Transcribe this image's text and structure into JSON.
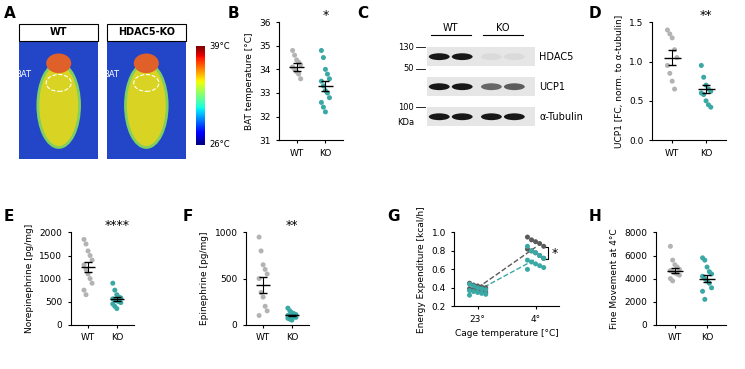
{
  "thermal_images": {
    "panel_label": "A",
    "images": [
      "WT",
      "HDAC5-KO"
    ],
    "region_label": "BAT",
    "scale": {
      "max_label": "39°C",
      "min_label": "26°C"
    }
  },
  "blot": {
    "panel_label": "C",
    "groups": [
      "WT",
      "KO"
    ],
    "proteins": [
      "HDAC5",
      "UCP1",
      "α-Tubulin"
    ],
    "size_markers": [
      130,
      50,
      100
    ],
    "size_unit": "KDa"
  },
  "chart_data": [
    {
      "panel_label": "B",
      "type": "dot",
      "ylabel": "BAT temperature [°C]",
      "categories": [
        "WT",
        "KO"
      ],
      "colors": [
        "#b3b3b3",
        "#3aa8a4"
      ],
      "values": [
        [
          34.8,
          34.6,
          34.4,
          34.3,
          34.2,
          34.1,
          34.0,
          33.9,
          33.8,
          33.6
        ],
        [
          34.8,
          34.5,
          34.0,
          33.8,
          33.6,
          33.5,
          33.3,
          33.1,
          33.0,
          32.8,
          32.6,
          32.4,
          32.2
        ]
      ],
      "means": [
        34.1,
        33.3
      ],
      "sem": [
        0.15,
        0.2
      ],
      "ylim": [
        31,
        36
      ],
      "yticks": [
        31,
        32,
        33,
        34,
        35,
        36
      ],
      "annotation": "*"
    },
    {
      "panel_label": "D",
      "type": "dot",
      "ylabel": "UCP1 [FC, norm. to α-tubulin]",
      "categories": [
        "WT",
        "KO"
      ],
      "colors": [
        "#b3b3b3",
        "#3aa8a4"
      ],
      "values": [
        [
          1.4,
          1.35,
          1.3,
          1.15,
          1.05,
          0.95,
          0.85,
          0.75,
          0.65
        ],
        [
          0.95,
          0.8,
          0.7,
          0.65,
          0.62,
          0.6,
          0.58,
          0.5,
          0.45,
          0.42
        ]
      ],
      "means": [
        1.05,
        0.65
      ],
      "sem": [
        0.09,
        0.05
      ],
      "ylim": [
        0,
        1.5
      ],
      "yticks": [
        {
          "value": 0,
          "label": "0.0"
        },
        {
          "value": 0.5,
          "label": "0.5"
        },
        {
          "value": 1,
          "label": "1.0"
        },
        {
          "value": 1.5,
          "label": "1.5"
        }
      ],
      "annotation": "**"
    },
    {
      "panel_label": "E",
      "type": "dot",
      "ylabel": "Norepinephrine [pg/mg]",
      "categories": [
        "WT",
        "KO"
      ],
      "colors": [
        "#b3b3b3",
        "#3aa8a4"
      ],
      "values": [
        [
          1850,
          1750,
          1600,
          1500,
          1400,
          1300,
          1200,
          1100,
          1000,
          900,
          750,
          650
        ],
        [
          900,
          750,
          650,
          600,
          580,
          560,
          540,
          520,
          500,
          480,
          450,
          400,
          350
        ]
      ],
      "means": [
        1250,
        560
      ],
      "sem": [
        100,
        40
      ],
      "ylim": [
        0,
        2000
      ],
      "yticks": [
        0,
        500,
        1000,
        1500,
        2000
      ],
      "annotation": "****"
    },
    {
      "panel_label": "F",
      "type": "dot",
      "ylabel": "Epinephrine [pg/mg]",
      "categories": [
        "WT",
        "KO"
      ],
      "colors": [
        "#b3b3b3",
        "#3aa8a4"
      ],
      "values": [
        [
          950,
          800,
          650,
          600,
          550,
          500,
          350,
          300,
          200,
          150,
          100
        ],
        [
          180,
          150,
          130,
          120,
          110,
          100,
          95,
          90,
          85,
          80,
          70,
          60,
          50
        ]
      ],
      "means": [
        430,
        100
      ],
      "sem": [
        90,
        10
      ],
      "ylim": [
        0,
        1000
      ],
      "yticks": [
        0,
        500,
        1000
      ],
      "annotation": "**"
    },
    {
      "panel_label": "G",
      "type": "line",
      "ylabel": "Energy Expenditure [kcal/h]",
      "xlabel": "Cage temperature [°C]",
      "categories": [
        "23°",
        "4°"
      ],
      "marker": "o",
      "line_style": "dashed",
      "series": [
        {
          "color": "#5a5a5a",
          "values": [
            [
              0.45,
              0.43,
              0.42,
              0.41,
              0.4,
              0.39,
              0.38,
              0.37,
              0.36,
              0.35
            ],
            [
              0.95,
              0.92,
              0.9,
              0.88,
              0.85,
              0.82,
              0.8,
              0.78,
              0.75,
              0.72
            ]
          ],
          "means": [
            0.4,
            0.84
          ]
        },
        {
          "color": "#3aa8a4",
          "values": [
            [
              0.44,
              0.42,
              0.4,
              0.39,
              0.38,
              0.37,
              0.36,
              0.35,
              0.34,
              0.33,
              0.32
            ],
            [
              0.85,
              0.8,
              0.78,
              0.75,
              0.72,
              0.7,
              0.68,
              0.66,
              0.64,
              0.62,
              0.6
            ]
          ],
          "means": [
            0.37,
            0.71
          ]
        }
      ],
      "ylim": [
        0.2,
        1.0
      ],
      "yticks": [
        {
          "value": 0.2,
          "label": "0.2"
        },
        {
          "value": 0.4,
          "label": "0.4"
        },
        {
          "value": 0.6,
          "label": "0.6"
        },
        {
          "value": 0.8,
          "label": "0.8"
        },
        {
          "value": 1.0,
          "label": "1.0"
        }
      ],
      "annotation": "*"
    },
    {
      "panel_label": "H",
      "type": "dot",
      "ylabel": "Fine Movement at 4°C",
      "categories": [
        "WT",
        "KO"
      ],
      "colors": [
        "#b3b3b3",
        "#3aa8a4"
      ],
      "values": [
        [
          6800,
          5600,
          5200,
          5000,
          4800,
          4700,
          4600,
          4500,
          4400,
          4300,
          4000,
          3800
        ],
        [
          5800,
          5600,
          5000,
          4600,
          4400,
          4200,
          4000,
          3800,
          3600,
          3200,
          2900,
          2200
        ]
      ],
      "means": [
        4700,
        4000
      ],
      "sem": [
        200,
        300
      ],
      "ylim": [
        0,
        8000
      ],
      "yticks": [
        0,
        2000,
        4000,
        6000,
        8000
      ]
    }
  ]
}
